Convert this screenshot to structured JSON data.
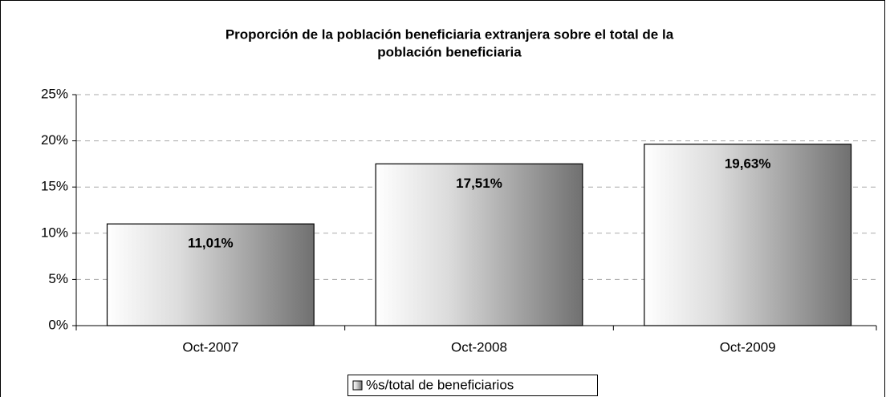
{
  "chart_data": {
    "type": "bar",
    "title": [
      "Proporción de la población beneficiaria extranjera sobre el total de la",
      "población beneficiaria"
    ],
    "categories": [
      "Oct-2007",
      "Oct-2008",
      "Oct-2009"
    ],
    "series": [
      {
        "name": "%s/total de beneficiarios",
        "color": "#707070",
        "values": [
          11.01,
          17.51,
          19.63
        ],
        "value_labels": [
          "11,01%",
          "17,51%",
          "19,63%"
        ]
      }
    ],
    "ylim": [
      0,
      25
    ],
    "yticks": [
      {
        "value": 0,
        "label": "0%"
      },
      {
        "value": 5,
        "label": "5%"
      },
      {
        "value": 10,
        "label": "10%"
      },
      {
        "value": 15,
        "label": "15%"
      },
      {
        "value": 20,
        "label": "20%"
      },
      {
        "value": 25,
        "label": "25%"
      }
    ],
    "grid": true,
    "legend": "bottom"
  }
}
